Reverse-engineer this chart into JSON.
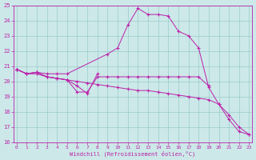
{
  "xlabel": "Windchill (Refroidissement éolien,°C)",
  "xlim": [
    -0.3,
    23.3
  ],
  "ylim": [
    16,
    25
  ],
  "xticks": [
    0,
    1,
    2,
    3,
    4,
    5,
    6,
    7,
    8,
    9,
    10,
    11,
    12,
    13,
    14,
    15,
    16,
    17,
    18,
    19,
    20,
    21,
    22,
    23
  ],
  "yticks": [
    16,
    17,
    18,
    19,
    20,
    21,
    22,
    23,
    24,
    25
  ],
  "bg_color": "#cce8e8",
  "line_color": "#bb22aa",
  "grid_color": "#99cccc",
  "lines": [
    {
      "x": [
        0,
        1,
        2,
        3,
        4,
        5,
        9,
        10,
        11,
        12,
        13,
        14,
        15,
        16,
        17,
        18,
        19,
        20,
        21,
        22,
        23
      ],
      "y": [
        20.8,
        20.5,
        20.6,
        20.5,
        20.5,
        20.5,
        21.8,
        22.2,
        23.7,
        24.8,
        24.4,
        24.4,
        24.3,
        23.3,
        23.0,
        22.2,
        19.6,
        18.5,
        17.5,
        16.7,
        16.5
      ]
    },
    {
      "x": [
        0,
        1,
        2,
        3,
        4,
        5,
        6,
        7,
        8,
        9,
        10,
        11,
        12,
        13,
        14,
        15,
        16,
        17,
        18,
        19,
        20,
        21,
        22,
        23
      ],
      "y": [
        20.8,
        20.5,
        20.5,
        20.3,
        20.2,
        20.1,
        20.0,
        19.9,
        19.8,
        19.7,
        19.6,
        19.5,
        19.4,
        19.4,
        19.3,
        19.2,
        19.1,
        19.0,
        18.9,
        18.8,
        18.5,
        17.8,
        17.0,
        16.5
      ]
    },
    {
      "x": [
        0,
        1,
        2,
        3,
        4,
        5,
        6,
        7,
        8,
        9,
        10,
        11,
        12,
        13,
        14,
        15,
        16,
        17,
        18,
        19
      ],
      "y": [
        20.8,
        20.5,
        20.6,
        20.3,
        20.2,
        20.1,
        19.3,
        19.3,
        20.3,
        20.3,
        20.3,
        20.3,
        20.3,
        20.3,
        20.3,
        20.3,
        20.3,
        20.3,
        20.3,
        19.7
      ]
    },
    {
      "x": [
        0,
        1,
        2,
        3,
        4,
        5,
        6,
        7,
        8
      ],
      "y": [
        20.8,
        20.5,
        20.6,
        20.3,
        20.2,
        20.1,
        19.7,
        19.2,
        20.5
      ]
    }
  ]
}
